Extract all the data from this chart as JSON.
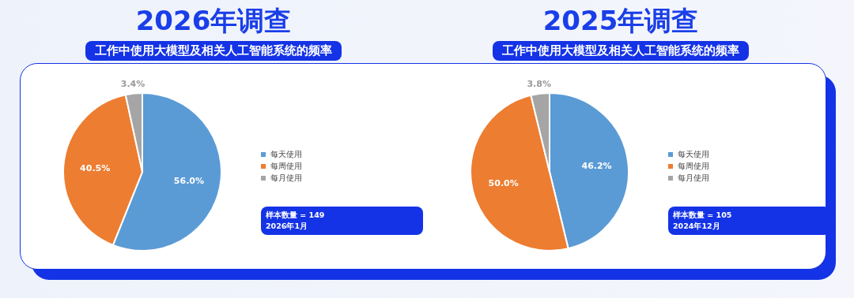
{
  "chart_data": [
    {
      "type": "pie",
      "title": "2026年调查",
      "subtitle": "工作中使用大模型及相关人工智能系统的频率",
      "categories": [
        "每天使用",
        "每周使用",
        "每月使用"
      ],
      "values": [
        56.0,
        40.5,
        3.4
      ],
      "colors": [
        "#5b9bd5",
        "#ed7d31",
        "#a5a5a5"
      ],
      "value_labels": [
        "56.0%",
        "40.5%",
        "3.4%"
      ],
      "legend": "right",
      "annotations": [
        "样本数量 = 149",
        "2026年1月"
      ]
    },
    {
      "type": "pie",
      "title": "2025年调查",
      "subtitle": "工作中使用大模型及相关人工智能系统的频率",
      "categories": [
        "每天使用",
        "每周使用",
        "每月使用"
      ],
      "values": [
        46.2,
        50.0,
        3.8
      ],
      "colors": [
        "#5b9bd5",
        "#ed7d31",
        "#a5a5a5"
      ],
      "value_labels": [
        "46.2%",
        "50.0%",
        "3.8%"
      ],
      "legend": "right",
      "annotations": [
        "样本数量 = 105",
        "2024年12月"
      ]
    }
  ]
}
